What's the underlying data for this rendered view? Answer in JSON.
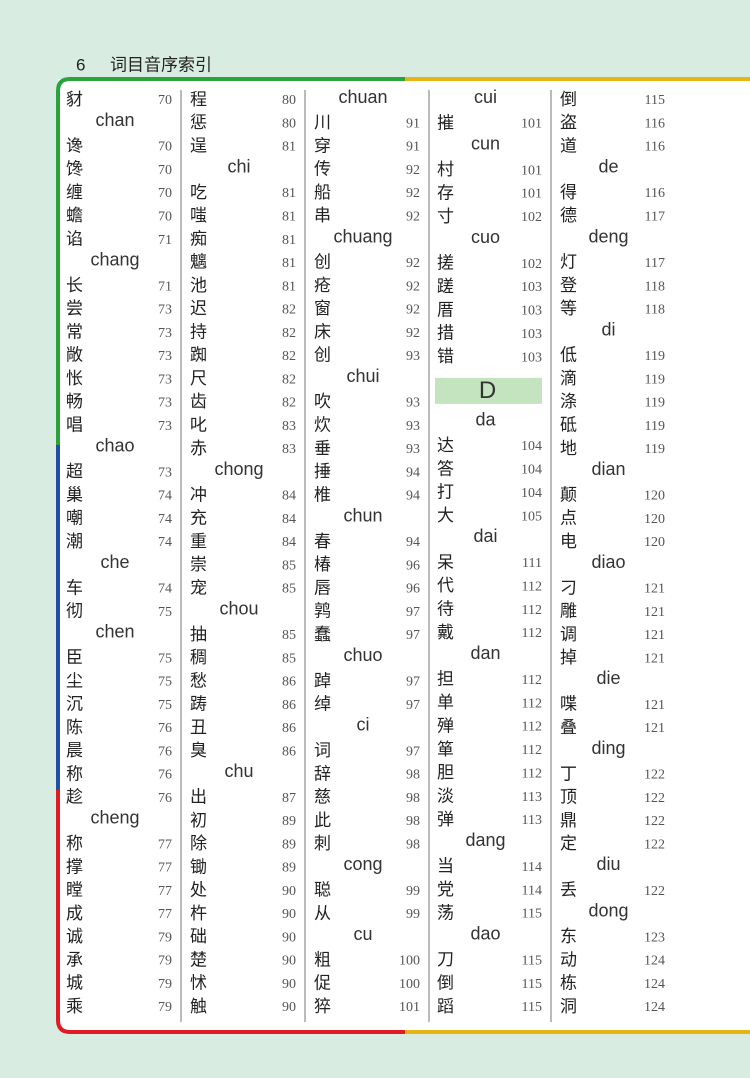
{
  "header": {
    "page_number": 6,
    "title": "词目音序索引"
  },
  "columns": [
    {
      "items": [
        {
          "char": "豺",
          "page": 70
        },
        {
          "pinyin": "chan"
        },
        {
          "char": "谗",
          "page": 70
        },
        {
          "char": "馋",
          "page": 70
        },
        {
          "char": "缠",
          "page": 70
        },
        {
          "char": "蟾",
          "page": 70
        },
        {
          "char": "谄",
          "page": 71
        },
        {
          "pinyin": "chang"
        },
        {
          "char": "长",
          "page": 71
        },
        {
          "char": "尝",
          "page": 73
        },
        {
          "char": "常",
          "page": 73
        },
        {
          "char": "敞",
          "page": 73
        },
        {
          "char": "怅",
          "page": 73
        },
        {
          "char": "畅",
          "page": 73
        },
        {
          "char": "唱",
          "page": 73
        },
        {
          "pinyin": "chao"
        },
        {
          "char": "超",
          "page": 73
        },
        {
          "char": "巢",
          "page": 74
        },
        {
          "char": "嘲",
          "page": 74
        },
        {
          "char": "潮",
          "page": 74
        },
        {
          "pinyin": "che"
        },
        {
          "char": "车",
          "page": 74
        },
        {
          "char": "彻",
          "page": 75
        },
        {
          "pinyin": "chen"
        },
        {
          "char": "臣",
          "page": 75
        },
        {
          "char": "尘",
          "page": 75
        },
        {
          "char": "沉",
          "page": 75
        },
        {
          "char": "陈",
          "page": 76
        },
        {
          "char": "晨",
          "page": 76
        },
        {
          "char": "称",
          "page": 76
        },
        {
          "char": "趁",
          "page": 76
        },
        {
          "pinyin": "cheng"
        },
        {
          "char": "称",
          "page": 77
        },
        {
          "char": "撑",
          "page": 77
        },
        {
          "char": "瞠",
          "page": 77
        },
        {
          "char": "成",
          "page": 77
        },
        {
          "char": "诚",
          "page": 79
        },
        {
          "char": "承",
          "page": 79
        },
        {
          "char": "城",
          "page": 79
        },
        {
          "char": "乘",
          "page": 79
        }
      ]
    },
    {
      "items": [
        {
          "char": "程",
          "page": 80
        },
        {
          "char": "惩",
          "page": 80
        },
        {
          "char": "逞",
          "page": 81
        },
        {
          "pinyin": "chi"
        },
        {
          "char": "吃",
          "page": 81
        },
        {
          "char": "嗤",
          "page": 81
        },
        {
          "char": "痴",
          "page": 81
        },
        {
          "char": "魑",
          "page": 81
        },
        {
          "char": "池",
          "page": 81
        },
        {
          "char": "迟",
          "page": 82
        },
        {
          "char": "持",
          "page": 82
        },
        {
          "char": "踟",
          "page": 82
        },
        {
          "char": "尺",
          "page": 82
        },
        {
          "char": "齿",
          "page": 82
        },
        {
          "char": "叱",
          "page": 83
        },
        {
          "char": "赤",
          "page": 83
        },
        {
          "pinyin": "chong"
        },
        {
          "char": "冲",
          "page": 84
        },
        {
          "char": "充",
          "page": 84
        },
        {
          "char": "重",
          "page": 84
        },
        {
          "char": "崇",
          "page": 85
        },
        {
          "char": "宠",
          "page": 85
        },
        {
          "pinyin": "chou"
        },
        {
          "char": "抽",
          "page": 85
        },
        {
          "char": "稠",
          "page": 85
        },
        {
          "char": "愁",
          "page": 86
        },
        {
          "char": "踌",
          "page": 86
        },
        {
          "char": "丑",
          "page": 86
        },
        {
          "char": "臭",
          "page": 86
        },
        {
          "pinyin": "chu"
        },
        {
          "char": "出",
          "page": 87
        },
        {
          "char": "初",
          "page": 89
        },
        {
          "char": "除",
          "page": 89
        },
        {
          "char": "锄",
          "page": 89
        },
        {
          "char": "处",
          "page": 90
        },
        {
          "char": "杵",
          "page": 90
        },
        {
          "char": "础",
          "page": 90
        },
        {
          "char": "楚",
          "page": 90
        },
        {
          "char": "怵",
          "page": 90
        },
        {
          "char": "触",
          "page": 90
        }
      ]
    },
    {
      "items": [
        {
          "pinyin": "chuan"
        },
        {
          "char": "川",
          "page": 91
        },
        {
          "char": "穿",
          "page": 91
        },
        {
          "char": "传",
          "page": 92
        },
        {
          "char": "船",
          "page": 92
        },
        {
          "char": "串",
          "page": 92
        },
        {
          "pinyin": "chuang"
        },
        {
          "char": "创",
          "page": 92
        },
        {
          "char": "疮",
          "page": 92
        },
        {
          "char": "窗",
          "page": 92
        },
        {
          "char": "床",
          "page": 92
        },
        {
          "char": "创",
          "page": 93
        },
        {
          "pinyin": "chui"
        },
        {
          "char": "吹",
          "page": 93
        },
        {
          "char": "炊",
          "page": 93
        },
        {
          "char": "垂",
          "page": 93
        },
        {
          "char": "捶",
          "page": 94
        },
        {
          "char": "椎",
          "page": 94
        },
        {
          "pinyin": "chun"
        },
        {
          "char": "春",
          "page": 94
        },
        {
          "char": "椿",
          "page": 96
        },
        {
          "char": "唇",
          "page": 96
        },
        {
          "char": "鹑",
          "page": 97
        },
        {
          "char": "蠢",
          "page": 97
        },
        {
          "pinyin": "chuo"
        },
        {
          "char": "踔",
          "page": 97
        },
        {
          "char": "绰",
          "page": 97
        },
        {
          "pinyin": "ci"
        },
        {
          "char": "词",
          "page": 97
        },
        {
          "char": "辞",
          "page": 98
        },
        {
          "char": "慈",
          "page": 98
        },
        {
          "char": "此",
          "page": 98
        },
        {
          "char": "刺",
          "page": 98
        },
        {
          "pinyin": "cong"
        },
        {
          "char": "聪",
          "page": 99
        },
        {
          "char": "从",
          "page": 99
        },
        {
          "pinyin": "cu"
        },
        {
          "char": "粗",
          "page": 100
        },
        {
          "char": "促",
          "page": 100
        },
        {
          "char": "猝",
          "page": 101
        }
      ]
    },
    {
      "items": [
        {
          "pinyin": "cui"
        },
        {
          "char": "摧",
          "page": 101
        },
        {
          "pinyin": "cun"
        },
        {
          "char": "村",
          "page": 101
        },
        {
          "char": "存",
          "page": 101
        },
        {
          "char": "寸",
          "page": 102
        },
        {
          "pinyin": "cuo"
        },
        {
          "char": "搓",
          "page": 102
        },
        {
          "char": "蹉",
          "page": 103
        },
        {
          "char": "厝",
          "page": 103
        },
        {
          "char": "措",
          "page": 103
        },
        {
          "char": "错",
          "page": 103
        },
        {
          "section": "D"
        },
        {
          "pinyin": "da"
        },
        {
          "char": "达",
          "page": 104
        },
        {
          "char": "答",
          "page": 104
        },
        {
          "char": "打",
          "page": 104
        },
        {
          "char": "大",
          "page": 105
        },
        {
          "pinyin": "dai"
        },
        {
          "char": "呆",
          "page": 111
        },
        {
          "char": "代",
          "page": 112
        },
        {
          "char": "待",
          "page": 112
        },
        {
          "char": "戴",
          "page": 112
        },
        {
          "pinyin": "dan"
        },
        {
          "char": "担",
          "page": 112
        },
        {
          "char": "单",
          "page": 112
        },
        {
          "char": "殚",
          "page": 112
        },
        {
          "char": "箪",
          "page": 112
        },
        {
          "char": "胆",
          "page": 112
        },
        {
          "char": "淡",
          "page": 113
        },
        {
          "char": "弹",
          "page": 113
        },
        {
          "pinyin": "dang"
        },
        {
          "char": "当",
          "page": 114
        },
        {
          "char": "党",
          "page": 114
        },
        {
          "char": "荡",
          "page": 115
        },
        {
          "pinyin": "dao"
        },
        {
          "char": "刀",
          "page": 115
        },
        {
          "char": "倒",
          "page": 115
        },
        {
          "char": "蹈",
          "page": 115
        }
      ]
    },
    {
      "items": [
        {
          "char": "倒",
          "page": 115
        },
        {
          "char": "盗",
          "page": 116
        },
        {
          "char": "道",
          "page": 116
        },
        {
          "pinyin": "de"
        },
        {
          "char": "得",
          "page": 116
        },
        {
          "char": "德",
          "page": 117
        },
        {
          "pinyin": "deng"
        },
        {
          "char": "灯",
          "page": 117
        },
        {
          "char": "登",
          "page": 118
        },
        {
          "char": "等",
          "page": 118
        },
        {
          "pinyin": "di"
        },
        {
          "char": "低",
          "page": 119
        },
        {
          "char": "滴",
          "page": 119
        },
        {
          "char": "涤",
          "page": 119
        },
        {
          "char": "砥",
          "page": 119
        },
        {
          "char": "地",
          "page": 119
        },
        {
          "pinyin": "dian"
        },
        {
          "char": "颠",
          "page": 120
        },
        {
          "char": "点",
          "page": 120
        },
        {
          "char": "电",
          "page": 120
        },
        {
          "pinyin": "diao"
        },
        {
          "char": "刁",
          "page": 121
        },
        {
          "char": "雕",
          "page": 121
        },
        {
          "char": "调",
          "page": 121
        },
        {
          "char": "掉",
          "page": 121
        },
        {
          "pinyin": "die"
        },
        {
          "char": "喋",
          "page": 121
        },
        {
          "char": "叠",
          "page": 121
        },
        {
          "pinyin": "ding"
        },
        {
          "char": "丁",
          "page": 122
        },
        {
          "char": "顶",
          "page": 122
        },
        {
          "char": "鼎",
          "page": 122
        },
        {
          "char": "定",
          "page": 122
        },
        {
          "pinyin": "diu"
        },
        {
          "char": "丢",
          "page": 122
        },
        {
          "pinyin": "dong"
        },
        {
          "char": "东",
          "page": 123
        },
        {
          "char": "动",
          "page": 124
        },
        {
          "char": "栋",
          "page": 124
        },
        {
          "char": "洞",
          "page": 124
        }
      ]
    }
  ]
}
